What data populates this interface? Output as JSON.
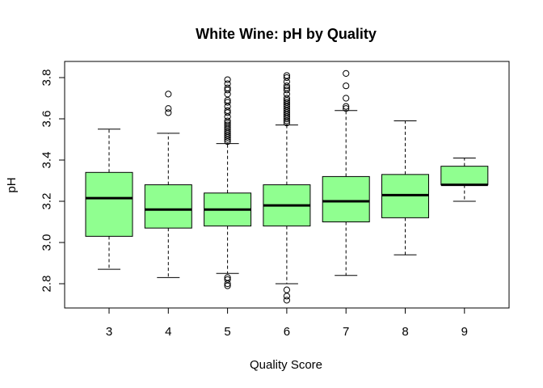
{
  "chart_data": {
    "type": "box",
    "title": "White Wine: pH by Quality",
    "xlabel": "Quality Score",
    "ylabel": "pH",
    "ylim": [
      2.69,
      3.84
    ],
    "y_ticks": [
      "2.8",
      "3.0",
      "3.2",
      "3.4",
      "3.6",
      "3.8"
    ],
    "categories": [
      "3",
      "4",
      "5",
      "6",
      "7",
      "8",
      "9"
    ],
    "box_color": "#90FF90",
    "grid": false,
    "boxes": [
      {
        "category": "3",
        "whisker_low": 2.87,
        "q1": 3.03,
        "median": 3.215,
        "q3": 3.34,
        "whisker_high": 3.55,
        "outliers": []
      },
      {
        "category": "4",
        "whisker_low": 2.83,
        "q1": 3.07,
        "median": 3.16,
        "q3": 3.28,
        "whisker_high": 3.53,
        "outliers": [
          3.63,
          3.65,
          3.72
        ]
      },
      {
        "category": "5",
        "whisker_low": 2.85,
        "q1": 3.08,
        "median": 3.16,
        "q3": 3.24,
        "whisker_high": 3.48,
        "outliers": [
          2.79,
          2.8,
          2.82,
          2.83,
          3.49,
          3.5,
          3.51,
          3.52,
          3.53,
          3.54,
          3.55,
          3.56,
          3.57,
          3.58,
          3.59,
          3.61,
          3.63,
          3.64,
          3.66,
          3.68,
          3.69,
          3.72,
          3.74,
          3.75,
          3.77,
          3.79
        ]
      },
      {
        "category": "6",
        "whisker_low": 2.8,
        "q1": 3.08,
        "median": 3.18,
        "q3": 3.28,
        "whisker_high": 3.57,
        "outliers": [
          2.72,
          2.74,
          2.77,
          3.58,
          3.59,
          3.6,
          3.61,
          3.62,
          3.63,
          3.64,
          3.65,
          3.66,
          3.67,
          3.68,
          3.69,
          3.7,
          3.72,
          3.74,
          3.75,
          3.76,
          3.78,
          3.8,
          3.81
        ]
      },
      {
        "category": "7",
        "whisker_low": 2.84,
        "q1": 3.1,
        "median": 3.2,
        "q3": 3.32,
        "whisker_high": 3.64,
        "outliers": [
          3.65,
          3.66,
          3.7,
          3.76,
          3.82
        ]
      },
      {
        "category": "8",
        "whisker_low": 2.94,
        "q1": 3.12,
        "median": 3.23,
        "q3": 3.33,
        "whisker_high": 3.59,
        "outliers": []
      },
      {
        "category": "9",
        "whisker_low": 3.2,
        "q1": 3.28,
        "median": 3.28,
        "q3": 3.37,
        "whisker_high": 3.41,
        "outliers": []
      }
    ]
  }
}
